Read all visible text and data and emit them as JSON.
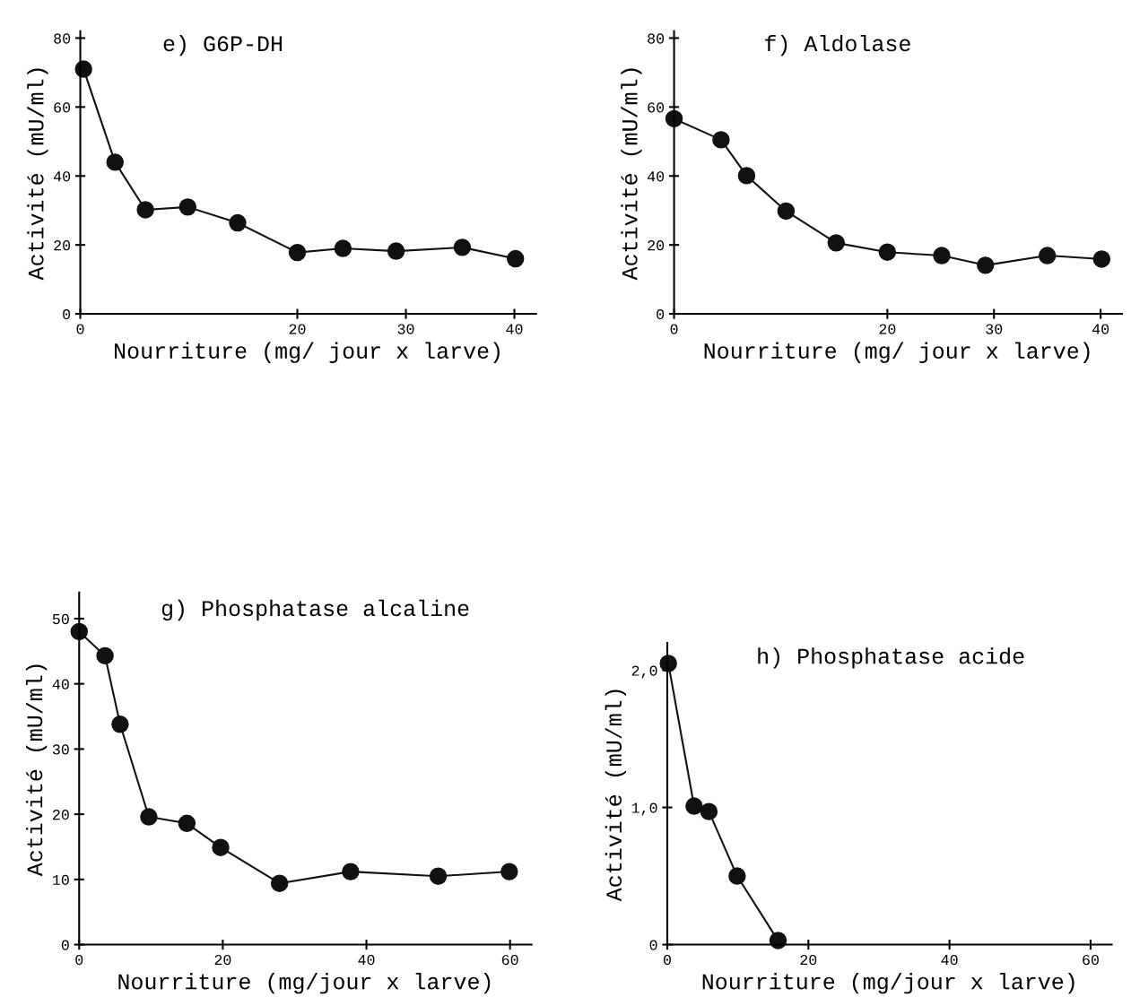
{
  "chart_data": [
    {
      "type": "line",
      "title": "e) G6P-DH",
      "xlabel": "Nourriture (mg/ jour x larve)",
      "ylabel": "Activité (mU/ml)",
      "xlim": [
        0,
        42
      ],
      "xticks": [
        0,
        20,
        30,
        40
      ],
      "ylim": [
        0,
        82
      ],
      "yticks": [
        0,
        20,
        40,
        60,
        80
      ],
      "marker": "circle",
      "line_style": "solid",
      "series": [
        {
          "color": "#111111",
          "x": [
            0.3,
            3.2,
            6,
            9.9,
            14.5,
            20,
            24.2,
            29.1,
            35.2,
            40.1
          ],
          "values": [
            71,
            44,
            30.2,
            31,
            26.4,
            17.8,
            19,
            18.2,
            19.3,
            16
          ]
        }
      ]
    },
    {
      "type": "line",
      "title": "f) Aldolase",
      "xlabel": "Nourriture (mg/ jour x larve)",
      "ylabel": "Activité (mU/ml)",
      "xlim": [
        0,
        42
      ],
      "xticks": [
        0,
        20,
        30,
        40
      ],
      "ylim": [
        0,
        82
      ],
      "yticks": [
        0,
        20,
        40,
        60,
        80
      ],
      "marker": "circle",
      "line_style": "solid",
      "series": [
        {
          "color": "#111111",
          "x": [
            0,
            4.4,
            6.8,
            10.5,
            15.2,
            20,
            25.1,
            29.2,
            35,
            40.1
          ],
          "values": [
            56.6,
            50.5,
            40.1,
            29.8,
            20.6,
            17.9,
            16.9,
            14.1,
            16.9,
            15.9
          ]
        }
      ]
    },
    {
      "type": "line",
      "title": "g) Phosphatase alcaline",
      "xlabel": "Nourriture (mg/jour x larve)",
      "ylabel": "Activité (mU/ml)",
      "xlim": [
        0,
        63
      ],
      "xticks": [
        0,
        20,
        40,
        60
      ],
      "ylim": [
        0,
        54
      ],
      "yticks": [
        0,
        10,
        20,
        30,
        40,
        50
      ],
      "marker": "circle",
      "line_style": "solid",
      "series": [
        {
          "color": "#111111",
          "x": [
            0,
            3.6,
            5.7,
            9.7,
            15,
            19.7,
            27.9,
            37.8,
            50,
            59.9
          ],
          "values": [
            48,
            44.3,
            33.8,
            19.6,
            18.6,
            14.9,
            9.4,
            11.2,
            10.5,
            11.2
          ]
        }
      ]
    },
    {
      "type": "line",
      "title": "h) Phosphatase acide",
      "xlabel": "Nourriture (mg/jour x larve)",
      "ylabel": "Activité (mU/ml)",
      "xlim": [
        0,
        63
      ],
      "xticks": [
        0,
        20,
        40,
        60
      ],
      "ylim": [
        0,
        2.2
      ],
      "yticks": [
        0,
        {
          "value": 1,
          "label": "1,0"
        },
        {
          "value": 2,
          "label": "2,0"
        }
      ],
      "marker": "circle",
      "line_style": "solid",
      "series": [
        {
          "color": "#111111",
          "x": [
            0.15,
            3.8,
            5.9,
            9.9,
            15.7
          ],
          "values": [
            2.05,
            1.01,
            0.97,
            0.5,
            0.03
          ]
        }
      ]
    }
  ]
}
